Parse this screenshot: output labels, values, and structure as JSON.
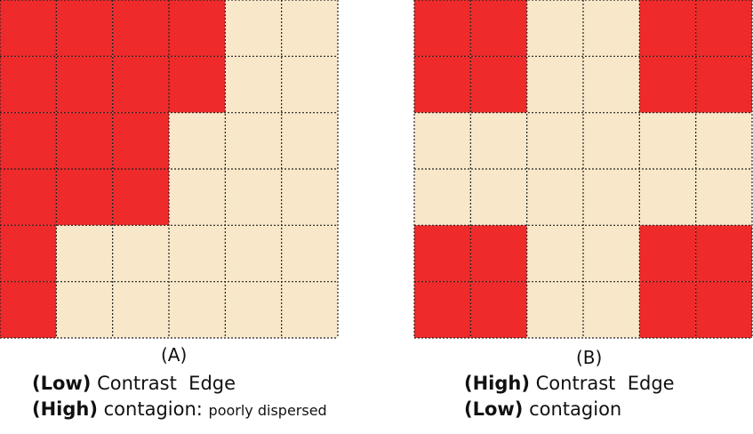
{
  "panels": [
    {
      "label": "(A)",
      "lines": [
        {
          "bold": "(Low)",
          "text": "Contrast  Edge"
        },
        {
          "bold": "(High)",
          "text": "contagion:",
          "note": "poorly dispersed"
        }
      ]
    },
    {
      "label": "(B)",
      "lines": [
        {
          "bold": "(High)",
          "text": "Contrast  Edge"
        },
        {
          "bold": "(Low)",
          "text": "contagion"
        }
      ]
    }
  ]
}
